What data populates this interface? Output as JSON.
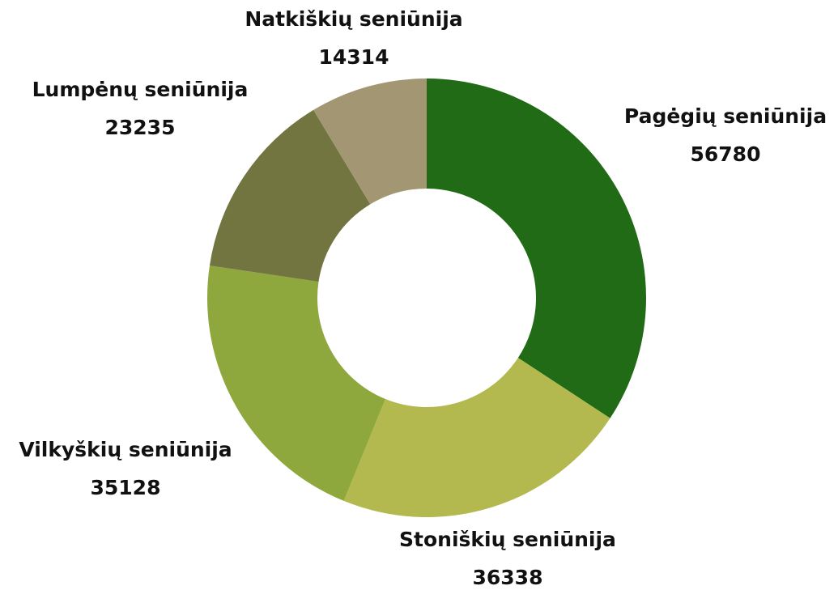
{
  "chart_data": {
    "type": "donut",
    "categories": [
      "Pagėgių seniūnija",
      "Stoniškių seniūnija",
      "Vilkyškių seniūnija",
      "Lumpėnų seniūnija",
      "Natkiškių seniūnija"
    ],
    "values": [
      56780,
      36338,
      35128,
      23235,
      14314
    ],
    "colors": [
      "#216a16",
      "#b3b94f",
      "#8ea83d",
      "#727540",
      "#a29772"
    ]
  }
}
